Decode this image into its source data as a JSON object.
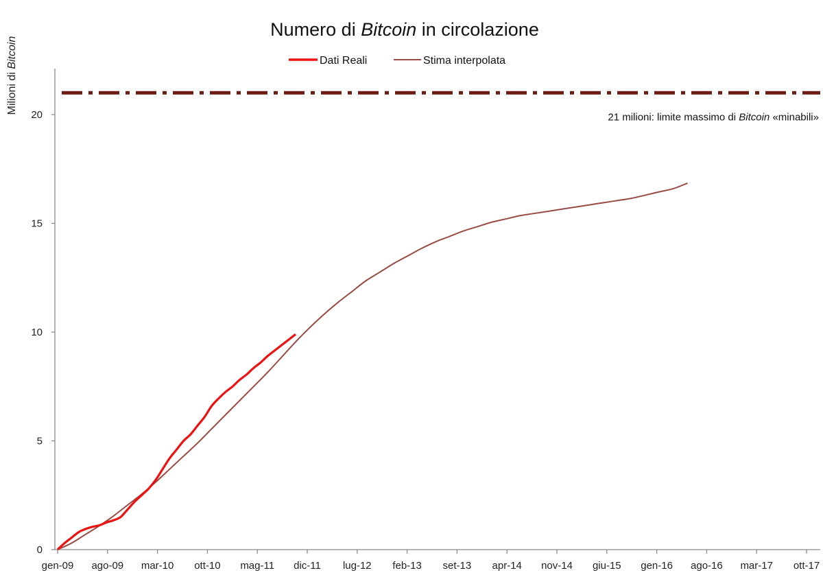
{
  "chart_data": {
    "type": "line",
    "title": {
      "before": "Numero di ",
      "italic": "Bitcoin",
      "after": " in circolazione"
    },
    "ylabel": {
      "before": "Milioni di ",
      "italic": "Bitcoin"
    },
    "xlabel": "",
    "x_ticks": [
      "gen-09",
      "ago-09",
      "mar-10",
      "ott-10",
      "mag-11",
      "dic-11",
      "lug-12",
      "feb-13",
      "set-13",
      "apr-14",
      "nov-14",
      "giu-15",
      "gen-16",
      "ago-16",
      "mar-17",
      "ott-17"
    ],
    "y_ticks": [
      "0",
      "5",
      "10",
      "15",
      "20"
    ],
    "ylim": [
      0,
      22
    ],
    "x_range_months": [
      0,
      107
    ],
    "grid": false,
    "legend_position": "top-center",
    "annotation": {
      "value": 21,
      "text_before": "21 milioni: limite massimo di ",
      "text_italic": "Bitcoin",
      "text_after": " «minabili»",
      "color": "#6b1d12"
    },
    "series": [
      {
        "name": "Dati Reali",
        "color": "#ee1111",
        "x_unit": "months since gen-09",
        "points": [
          [
            0,
            0
          ],
          [
            1,
            0.3
          ],
          [
            2,
            0.55
          ],
          [
            3,
            0.8
          ],
          [
            4,
            0.95
          ],
          [
            5,
            1.05
          ],
          [
            6,
            1.12
          ],
          [
            7,
            1.25
          ],
          [
            8,
            1.35
          ],
          [
            9,
            1.5
          ],
          [
            10,
            1.85
          ],
          [
            11,
            2.2
          ],
          [
            12,
            2.5
          ],
          [
            13,
            2.8
          ],
          [
            14,
            3.2
          ],
          [
            15,
            3.7
          ],
          [
            16,
            4.2
          ],
          [
            17,
            4.6
          ],
          [
            18,
            5.0
          ],
          [
            19,
            5.3
          ],
          [
            20,
            5.7
          ],
          [
            21,
            6.1
          ],
          [
            22,
            6.6
          ],
          [
            23,
            6.95
          ],
          [
            24,
            7.25
          ],
          [
            25,
            7.5
          ],
          [
            26,
            7.8
          ],
          [
            27,
            8.05
          ],
          [
            28,
            8.35
          ],
          [
            29,
            8.6
          ],
          [
            30,
            8.9
          ],
          [
            31,
            9.15
          ],
          [
            32,
            9.4
          ],
          [
            33,
            9.65
          ],
          [
            34,
            9.9
          ]
        ]
      },
      {
        "name": "Stima interpolata",
        "color": "#9a4a42",
        "x_unit": "months since gen-09",
        "points": [
          [
            0,
            0
          ],
          [
            2,
            0.3
          ],
          [
            4,
            0.7
          ],
          [
            6,
            1.1
          ],
          [
            8,
            1.55
          ],
          [
            10,
            2.05
          ],
          [
            12,
            2.55
          ],
          [
            14,
            3.1
          ],
          [
            16,
            3.7
          ],
          [
            18,
            4.3
          ],
          [
            20,
            4.9
          ],
          [
            22,
            5.55
          ],
          [
            24,
            6.2
          ],
          [
            26,
            6.85
          ],
          [
            28,
            7.5
          ],
          [
            30,
            8.15
          ],
          [
            32,
            8.85
          ],
          [
            34,
            9.55
          ],
          [
            36,
            10.2
          ],
          [
            38,
            10.8
          ],
          [
            40,
            11.35
          ],
          [
            42,
            11.85
          ],
          [
            44,
            12.35
          ],
          [
            46,
            12.75
          ],
          [
            48,
            13.15
          ],
          [
            50,
            13.5
          ],
          [
            52,
            13.85
          ],
          [
            54,
            14.15
          ],
          [
            56,
            14.4
          ],
          [
            58,
            14.65
          ],
          [
            60,
            14.85
          ],
          [
            62,
            15.05
          ],
          [
            64,
            15.2
          ],
          [
            66,
            15.35
          ],
          [
            68,
            15.45
          ],
          [
            70,
            15.55
          ],
          [
            72,
            15.65
          ],
          [
            74,
            15.75
          ],
          [
            76,
            15.85
          ],
          [
            78,
            15.95
          ],
          [
            80,
            16.05
          ],
          [
            82,
            16.15
          ],
          [
            84,
            16.3
          ],
          [
            86,
            16.45
          ],
          [
            88,
            16.6
          ],
          [
            90,
            16.85
          ]
        ]
      }
    ]
  }
}
